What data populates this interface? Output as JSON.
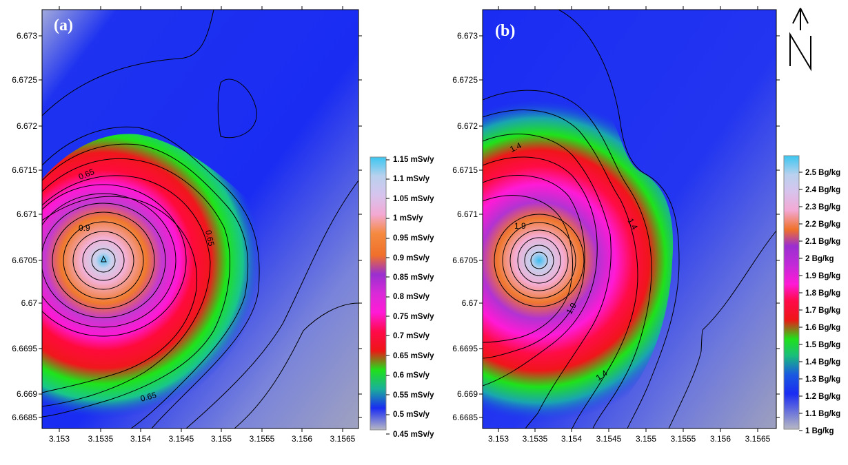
{
  "panel_a": {
    "tag": "(a)",
    "y_ticks": [
      "6.673",
      "6.6725",
      "6.672",
      "6.6715",
      "6.671",
      "6.6705",
      "6.67",
      "6.6695",
      "6.669",
      "6.6685"
    ],
    "x_ticks": [
      "3.153",
      "3.1535",
      "3.154",
      "3.1545",
      "3.155",
      "3.1555",
      "3.156",
      "3.1565"
    ],
    "contour_labels": [
      "0.65",
      "0.9",
      "0.65",
      "0.65"
    ],
    "legend": [
      "1.15 mSv/y",
      "1.1 mSv/y",
      "1.05 mSv/y",
      "1 mSv/y",
      "0.95 mSv/y",
      "0.9 mSv/y",
      "0.85 mSv/y",
      "0.8 mSv/y",
      "0.75 mSv/y",
      "0.7 mSv/y",
      "0.65 mSv/y",
      "0.6 mSv/y",
      "0.55 mSv/y",
      "0.5 mSv/y",
      "0.45 mSv/y"
    ]
  },
  "panel_b": {
    "tag": "(b)",
    "y_ticks": [
      "6.673",
      "6.6725",
      "6.672",
      "6.6715",
      "6.671",
      "6.6705",
      "6.67",
      "6.6695",
      "6.669",
      "6.6685"
    ],
    "x_ticks": [
      "3.153",
      "3.1535",
      "3.154",
      "3.1545",
      "3.155",
      "3.1555",
      "3.156",
      "3.1565"
    ],
    "contour_labels": [
      "1.4",
      "1.9",
      "1.4",
      "1.9",
      "1.4"
    ],
    "legend": [
      "2.5 Bg/kg",
      "2.4 Bg/kg",
      "2.3 Bg/kg",
      "2.2 Bg/kg",
      "2.1 Bg/kg",
      "2 Bg/kg",
      "1.9 Bg/kg",
      "1.8 Bg/kg",
      "1.7 Bg/kg",
      "1.6 Bg/kg",
      "1.5 Bg/kg",
      "1.4 Bg/kg",
      "1.3 Bg/kg",
      "1.2 Bg/kg",
      "1.1 Bg/kg",
      "1 Bg/kg"
    ]
  },
  "north_arrow": {
    "icon": "north-arrow-icon"
  }
}
